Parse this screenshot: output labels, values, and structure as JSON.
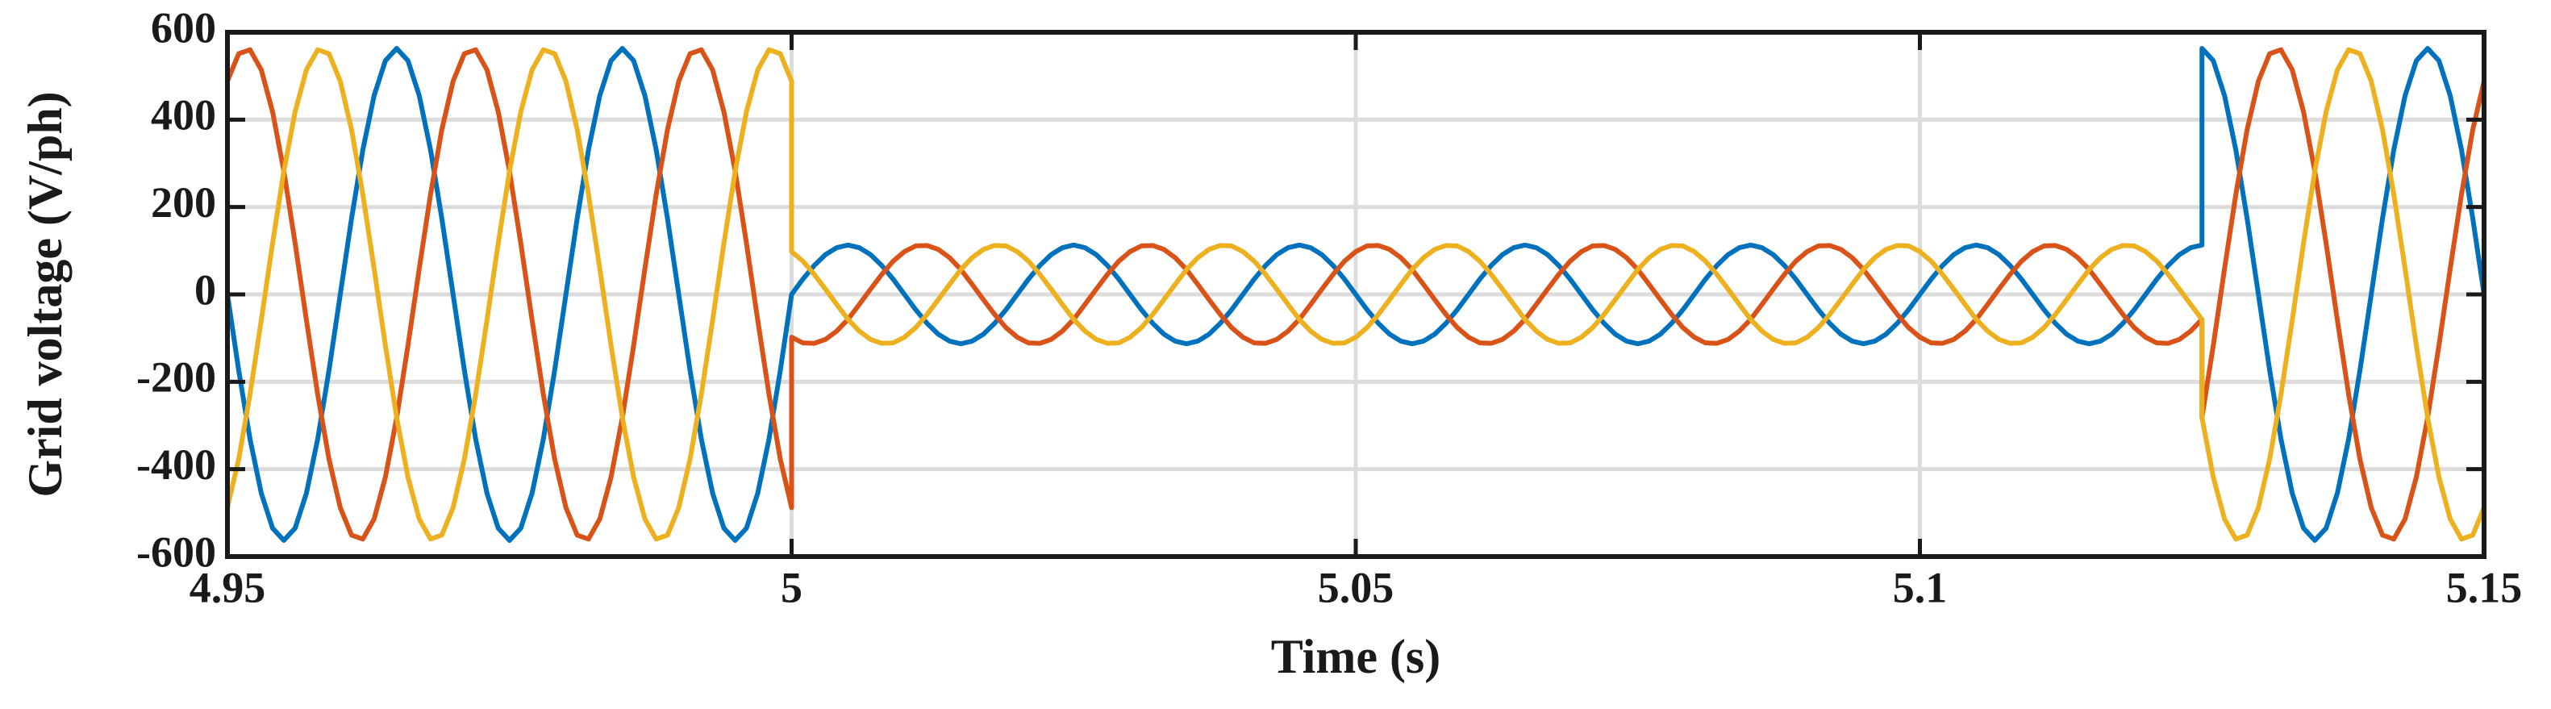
{
  "chart_data": {
    "type": "line",
    "xlabel": "Time (s)",
    "ylabel": "Grid voltage (V/ph)",
    "xlim": [
      4.95,
      5.15
    ],
    "xticks": [
      4.95,
      5,
      5.05,
      5.1,
      5.15
    ],
    "ylim": [
      -600,
      600
    ],
    "yticks": [
      -600,
      -400,
      -200,
      0,
      200,
      400,
      600
    ],
    "grid": true,
    "x": [
      4.95,
      4.951,
      4.952,
      4.953,
      4.954,
      4.955,
      4.956,
      4.957,
      4.958,
      4.959,
      4.96,
      4.961,
      4.962,
      4.963,
      4.964,
      4.965,
      4.966,
      4.967,
      4.968,
      4.969,
      4.97,
      4.971,
      4.972,
      4.973,
      4.974,
      4.975,
      4.976,
      4.977,
      4.978,
      4.979,
      4.98,
      4.981,
      4.982,
      4.983,
      4.984,
      4.985,
      4.986,
      4.987,
      4.988,
      4.989,
      4.99,
      4.991,
      4.992,
      4.993,
      4.994,
      4.995,
      4.996,
      4.997,
      4.998,
      4.999,
      5,
      5,
      5.001,
      5.002,
      5.003,
      5.004,
      5.005,
      5.006,
      5.007,
      5.008,
      5.009,
      5.01,
      5.011,
      5.012,
      5.013,
      5.014,
      5.015,
      5.016,
      5.017,
      5.018,
      5.019,
      5.02,
      5.021,
      5.022,
      5.023,
      5.024,
      5.025,
      5.026,
      5.027,
      5.028,
      5.029,
      5.03,
      5.031,
      5.032,
      5.033,
      5.034,
      5.035,
      5.036,
      5.037,
      5.038,
      5.039,
      5.04,
      5.041,
      5.042,
      5.043,
      5.044,
      5.045,
      5.046,
      5.047,
      5.048,
      5.049,
      5.05,
      5.051,
      5.052,
      5.053,
      5.054,
      5.055,
      5.056,
      5.057,
      5.058,
      5.059,
      5.06,
      5.061,
      5.062,
      5.063,
      5.064,
      5.065,
      5.066,
      5.067,
      5.068,
      5.069,
      5.07,
      5.071,
      5.072,
      5.073,
      5.074,
      5.075,
      5.076,
      5.077,
      5.078,
      5.079,
      5.08,
      5.081,
      5.082,
      5.083,
      5.084,
      5.085,
      5.086,
      5.087,
      5.088,
      5.089,
      5.09,
      5.091,
      5.092,
      5.093,
      5.094,
      5.095,
      5.096,
      5.097,
      5.098,
      5.099,
      5.1,
      5.101,
      5.102,
      5.103,
      5.104,
      5.105,
      5.106,
      5.107,
      5.108,
      5.109,
      5.11,
      5.111,
      5.112,
      5.113,
      5.114,
      5.115,
      5.116,
      5.117,
      5.118,
      5.119,
      5.12,
      5.121,
      5.122,
      5.123,
      5.124,
      5.125,
      5.125,
      5.126,
      5.127,
      5.128,
      5.129,
      5.13,
      5.131,
      5.132,
      5.133,
      5.134,
      5.135,
      5.136,
      5.137,
      5.138,
      5.139,
      5.14,
      5.141,
      5.142,
      5.143,
      5.144,
      5.145,
      5.146,
      5.147,
      5.148,
      5.149,
      5.15
    ],
    "series": [
      {
        "color": "#0072BD",
        "values": [
          0,
          -174,
          -331,
          -455,
          -535,
          -563,
          -535,
          -455,
          -331,
          -174,
          0,
          174,
          331,
          455,
          535,
          563,
          535,
          455,
          331,
          174,
          0,
          -174,
          -331,
          -455,
          -535,
          -563,
          -535,
          -455,
          -331,
          -174,
          0,
          174,
          331,
          455,
          535,
          563,
          535,
          455,
          331,
          174,
          0,
          -174,
          -331,
          -455,
          -535,
          -563,
          -535,
          -455,
          -331,
          -174,
          0,
          0,
          35,
          66,
          91,
          107,
          113,
          107,
          91,
          66,
          35,
          0,
          -35,
          -66,
          -91,
          -107,
          -113,
          -107,
          -91,
          -66,
          -35,
          0,
          35,
          66,
          91,
          107,
          113,
          107,
          91,
          66,
          35,
          0,
          -35,
          -66,
          -91,
          -107,
          -113,
          -107,
          -91,
          -66,
          -35,
          0,
          35,
          66,
          91,
          107,
          113,
          107,
          91,
          66,
          35,
          0,
          -35,
          -66,
          -91,
          -107,
          -113,
          -107,
          -91,
          -66,
          -35,
          0,
          35,
          66,
          91,
          107,
          113,
          107,
          91,
          66,
          35,
          0,
          -35,
          -66,
          -91,
          -107,
          -113,
          -107,
          -91,
          -66,
          -35,
          0,
          35,
          66,
          91,
          107,
          113,
          107,
          91,
          66,
          35,
          0,
          -35,
          -66,
          -91,
          -107,
          -113,
          -107,
          -91,
          -66,
          -35,
          0,
          35,
          66,
          91,
          107,
          113,
          107,
          91,
          66,
          35,
          0,
          -35,
          -66,
          -91,
          -107,
          -113,
          -107,
          -91,
          -66,
          -35,
          0,
          35,
          66,
          91,
          107,
          113,
          563,
          535,
          455,
          331,
          174,
          0,
          -174,
          -331,
          -455,
          -535,
          -563,
          -535,
          -455,
          -331,
          -174,
          0,
          174,
          331,
          455,
          535,
          563,
          535,
          455,
          331,
          174,
          0
        ]
      },
      {
        "color": "#D95319",
        "values": [
          488,
          551,
          560,
          514,
          418,
          282,
          117,
          -59,
          -229,
          -377,
          -488,
          -551,
          -560,
          -514,
          -418,
          -282,
          -117,
          59,
          229,
          377,
          488,
          551,
          560,
          514,
          418,
          282,
          117,
          -59,
          -229,
          -377,
          -488,
          -551,
          -560,
          -514,
          -418,
          -282,
          -117,
          59,
          229,
          377,
          488,
          551,
          560,
          514,
          418,
          282,
          117,
          -59,
          -229,
          -377,
          -488,
          -98,
          -111,
          -112,
          -103,
          -84,
          -57,
          -23,
          12,
          46,
          76,
          98,
          111,
          112,
          103,
          84,
          57,
          23,
          -12,
          -46,
          -76,
          -98,
          -111,
          -112,
          -103,
          -84,
          -57,
          -23,
          12,
          46,
          76,
          98,
          111,
          112,
          103,
          84,
          57,
          23,
          -12,
          -46,
          -76,
          -98,
          -111,
          -112,
          -103,
          -84,
          -57,
          -23,
          12,
          46,
          76,
          98,
          111,
          112,
          103,
          84,
          57,
          23,
          -12,
          -46,
          -76,
          -98,
          -111,
          -112,
          -103,
          -84,
          -57,
          -23,
          12,
          46,
          76,
          98,
          111,
          112,
          103,
          84,
          57,
          23,
          -12,
          -46,
          -76,
          -98,
          -111,
          -112,
          -103,
          -84,
          -57,
          -23,
          12,
          46,
          76,
          98,
          111,
          112,
          103,
          84,
          57,
          23,
          -12,
          -46,
          -76,
          -98,
          -111,
          -112,
          -103,
          -84,
          -57,
          -23,
          12,
          46,
          76,
          98,
          111,
          112,
          103,
          84,
          57,
          23,
          -12,
          -46,
          -76,
          -98,
          -111,
          -112,
          -103,
          -84,
          -57,
          -282,
          -117,
          59,
          229,
          377,
          488,
          551,
          560,
          514,
          418,
          282,
          117,
          -59,
          -229,
          -377,
          -488,
          -551,
          -560,
          -514,
          -418,
          -282,
          -117,
          59,
          229,
          377,
          488
        ]
      },
      {
        "color": "#EDB120",
        "values": [
          -488,
          -377,
          -229,
          -59,
          117,
          282,
          418,
          514,
          560,
          551,
          488,
          377,
          229,
          59,
          -117,
          -282,
          -418,
          -514,
          -560,
          -551,
          -488,
          -377,
          -229,
          -59,
          117,
          282,
          418,
          514,
          560,
          551,
          488,
          377,
          229,
          59,
          -117,
          -282,
          -418,
          -514,
          -560,
          -551,
          -488,
          -377,
          -229,
          -59,
          117,
          282,
          418,
          514,
          560,
          551,
          488,
          98,
          76,
          46,
          12,
          -23,
          -57,
          -84,
          -103,
          -112,
          -111,
          -98,
          -76,
          -46,
          -12,
          23,
          57,
          84,
          103,
          112,
          111,
          98,
          76,
          46,
          12,
          -23,
          -57,
          -84,
          -103,
          -112,
          -111,
          -98,
          -76,
          -46,
          -12,
          23,
          57,
          84,
          103,
          112,
          111,
          98,
          76,
          46,
          12,
          -23,
          -57,
          -84,
          -103,
          -112,
          -111,
          -98,
          -76,
          -46,
          -12,
          23,
          57,
          84,
          103,
          112,
          111,
          98,
          76,
          46,
          12,
          -23,
          -57,
          -84,
          -103,
          -112,
          -111,
          -98,
          -76,
          -46,
          -12,
          23,
          57,
          84,
          103,
          112,
          111,
          98,
          76,
          46,
          12,
          -23,
          -57,
          -84,
          -103,
          -112,
          -111,
          -98,
          -76,
          -46,
          -12,
          23,
          57,
          84,
          103,
          112,
          111,
          98,
          76,
          46,
          12,
          -23,
          -57,
          -84,
          -103,
          -112,
          -111,
          -98,
          -76,
          -46,
          -12,
          23,
          57,
          84,
          103,
          112,
          111,
          98,
          76,
          46,
          12,
          -23,
          -57,
          -282,
          -418,
          -514,
          -560,
          -551,
          -488,
          -377,
          -229,
          -59,
          117,
          282,
          418,
          514,
          560,
          551,
          488,
          377,
          229,
          59,
          -117,
          -282,
          -418,
          -514,
          -560,
          -551,
          -488
        ]
      }
    ]
  }
}
